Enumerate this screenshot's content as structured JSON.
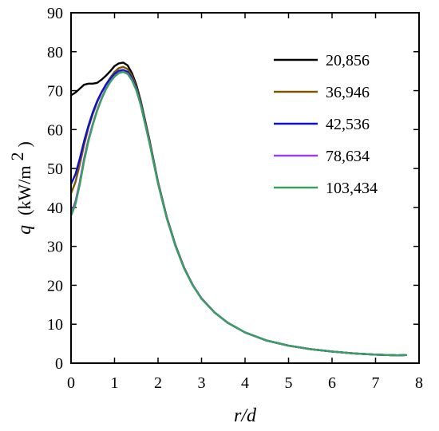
{
  "chart_data": {
    "type": "line",
    "xlabel": "r/d",
    "ylabel": {
      "var": "q",
      "unit_open": "(kW/m",
      "unit_sup": "2",
      "unit_close": ")"
    },
    "xlim": [
      0,
      8
    ],
    "ylim": [
      0,
      90
    ],
    "xticks": [
      0,
      1,
      2,
      3,
      4,
      5,
      6,
      7,
      8
    ],
    "yticks": [
      0,
      10,
      20,
      30,
      40,
      50,
      60,
      70,
      80,
      90
    ],
    "grid": false,
    "legend_position": "top-right",
    "series": [
      {
        "name": "20,856",
        "color": "#000000",
        "points": [
          [
            0,
            68.8
          ],
          [
            0.1,
            69.5
          ],
          [
            0.2,
            70.5
          ],
          [
            0.3,
            71.5
          ],
          [
            0.4,
            71.8
          ],
          [
            0.5,
            71.8
          ],
          [
            0.6,
            72
          ],
          [
            0.7,
            72.8
          ],
          [
            0.8,
            73.8
          ],
          [
            0.9,
            75
          ],
          [
            1.0,
            76.3
          ],
          [
            1.1,
            77
          ],
          [
            1.2,
            77.2
          ],
          [
            1.3,
            76.5
          ],
          [
            1.4,
            74.5
          ],
          [
            1.5,
            71.5
          ],
          [
            1.6,
            67.5
          ],
          [
            1.8,
            57.5
          ],
          [
            2.0,
            46.5
          ],
          [
            2.2,
            37.5
          ],
          [
            2.4,
            30.3
          ],
          [
            2.6,
            24.5
          ],
          [
            2.8,
            20
          ],
          [
            3.0,
            16.6
          ],
          [
            3.3,
            13
          ],
          [
            3.6,
            10.4
          ],
          [
            4.0,
            7.9
          ],
          [
            4.5,
            5.8
          ],
          [
            5.0,
            4.5
          ],
          [
            5.5,
            3.6
          ],
          [
            6.0,
            3
          ],
          [
            6.5,
            2.5
          ],
          [
            7.0,
            2.2
          ],
          [
            7.5,
            2
          ],
          [
            7.7,
            2.1
          ]
        ]
      },
      {
        "name": "36,946",
        "color": "#7a5a00",
        "points": [
          [
            0,
            43.6
          ],
          [
            0.1,
            46.5
          ],
          [
            0.2,
            51
          ],
          [
            0.3,
            56
          ],
          [
            0.4,
            60.5
          ],
          [
            0.5,
            64
          ],
          [
            0.6,
            67
          ],
          [
            0.7,
            69.5
          ],
          [
            0.8,
            71.5
          ],
          [
            0.9,
            73.3
          ],
          [
            1.0,
            74.8
          ],
          [
            1.1,
            75.8
          ],
          [
            1.2,
            76.1
          ],
          [
            1.3,
            75.5
          ],
          [
            1.4,
            73.8
          ],
          [
            1.5,
            71
          ],
          [
            1.6,
            67.2
          ],
          [
            1.8,
            57.3
          ],
          [
            2.0,
            46.5
          ],
          [
            2.2,
            37.5
          ],
          [
            2.4,
            30.3
          ],
          [
            2.6,
            24.5
          ],
          [
            2.8,
            20
          ],
          [
            3.0,
            16.6
          ],
          [
            3.3,
            13
          ],
          [
            3.6,
            10.4
          ],
          [
            4.0,
            7.9
          ],
          [
            4.5,
            5.8
          ],
          [
            5.0,
            4.5
          ],
          [
            5.5,
            3.6
          ],
          [
            6.0,
            3
          ],
          [
            6.5,
            2.5
          ],
          [
            7.0,
            2.2
          ],
          [
            7.5,
            2
          ],
          [
            7.7,
            2.1
          ]
        ]
      },
      {
        "name": "42,536",
        "color": "#1010d0",
        "points": [
          [
            0,
            46
          ],
          [
            0.1,
            48.5
          ],
          [
            0.2,
            52.5
          ],
          [
            0.3,
            57
          ],
          [
            0.4,
            61
          ],
          [
            0.5,
            64.5
          ],
          [
            0.6,
            67.3
          ],
          [
            0.7,
            69.6
          ],
          [
            0.8,
            71.5
          ],
          [
            0.9,
            73
          ],
          [
            1.0,
            74.3
          ],
          [
            1.1,
            75.1
          ],
          [
            1.2,
            75.3
          ],
          [
            1.3,
            74.8
          ],
          [
            1.4,
            73.2
          ],
          [
            1.5,
            70.5
          ],
          [
            1.6,
            66.8
          ],
          [
            1.8,
            57
          ],
          [
            2.0,
            46.3
          ],
          [
            2.2,
            37.4
          ],
          [
            2.4,
            30.2
          ],
          [
            2.6,
            24.4
          ],
          [
            2.8,
            20
          ],
          [
            3.0,
            16.6
          ],
          [
            3.3,
            13
          ],
          [
            3.6,
            10.4
          ],
          [
            4.0,
            7.9
          ],
          [
            4.5,
            5.8
          ],
          [
            5.0,
            4.5
          ],
          [
            5.5,
            3.6
          ],
          [
            6.0,
            3
          ],
          [
            6.5,
            2.5
          ],
          [
            7.0,
            2.2
          ],
          [
            7.5,
            2
          ],
          [
            7.7,
            2.1
          ]
        ]
      },
      {
        "name": "78,634",
        "color": "#9a40e8",
        "points": [
          [
            0,
            38.5
          ],
          [
            0.1,
            41.5
          ],
          [
            0.2,
            46.5
          ],
          [
            0.3,
            52.5
          ],
          [
            0.4,
            57.5
          ],
          [
            0.5,
            61.5
          ],
          [
            0.6,
            65
          ],
          [
            0.7,
            68
          ],
          [
            0.8,
            70.5
          ],
          [
            0.9,
            72.3
          ],
          [
            1.0,
            73.7
          ],
          [
            1.1,
            74.6
          ],
          [
            1.2,
            74.9
          ],
          [
            1.3,
            74.4
          ],
          [
            1.4,
            72.8
          ],
          [
            1.5,
            70.2
          ],
          [
            1.6,
            66.5
          ],
          [
            1.8,
            56.8
          ],
          [
            2.0,
            46.2
          ],
          [
            2.2,
            37.3
          ],
          [
            2.4,
            30.1
          ],
          [
            2.6,
            24.4
          ],
          [
            2.8,
            20
          ],
          [
            3.0,
            16.6
          ],
          [
            3.3,
            13
          ],
          [
            3.6,
            10.4
          ],
          [
            4.0,
            7.9
          ],
          [
            4.5,
            5.8
          ],
          [
            5.0,
            4.5
          ],
          [
            5.5,
            3.6
          ],
          [
            6.0,
            3
          ],
          [
            6.5,
            2.5
          ],
          [
            7.0,
            2.2
          ],
          [
            7.5,
            2
          ],
          [
            7.7,
            2.1
          ]
        ]
      },
      {
        "name": "103,434",
        "color": "#3aa060",
        "points": [
          [
            0,
            37.8
          ],
          [
            0.1,
            40.8
          ],
          [
            0.2,
            45.8
          ],
          [
            0.3,
            51.8
          ],
          [
            0.4,
            57
          ],
          [
            0.5,
            61.2
          ],
          [
            0.6,
            64.8
          ],
          [
            0.7,
            67.8
          ],
          [
            0.8,
            70.3
          ],
          [
            0.9,
            72.2
          ],
          [
            1.0,
            73.6
          ],
          [
            1.1,
            74.5
          ],
          [
            1.2,
            74.8
          ],
          [
            1.3,
            74.3
          ],
          [
            1.4,
            72.7
          ],
          [
            1.5,
            70.1
          ],
          [
            1.6,
            66.4
          ],
          [
            1.8,
            56.7
          ],
          [
            2.0,
            46.1
          ],
          [
            2.2,
            37.2
          ],
          [
            2.4,
            30.1
          ],
          [
            2.6,
            24.3
          ],
          [
            2.8,
            19.9
          ],
          [
            3.0,
            16.5
          ],
          [
            3.3,
            13
          ],
          [
            3.6,
            10.4
          ],
          [
            4.0,
            7.9
          ],
          [
            4.5,
            5.8
          ],
          [
            5.0,
            4.5
          ],
          [
            5.5,
            3.6
          ],
          [
            6.0,
            3
          ],
          [
            6.5,
            2.5
          ],
          [
            7.0,
            2.2
          ],
          [
            7.5,
            2
          ],
          [
            7.7,
            2.1
          ]
        ]
      }
    ]
  }
}
